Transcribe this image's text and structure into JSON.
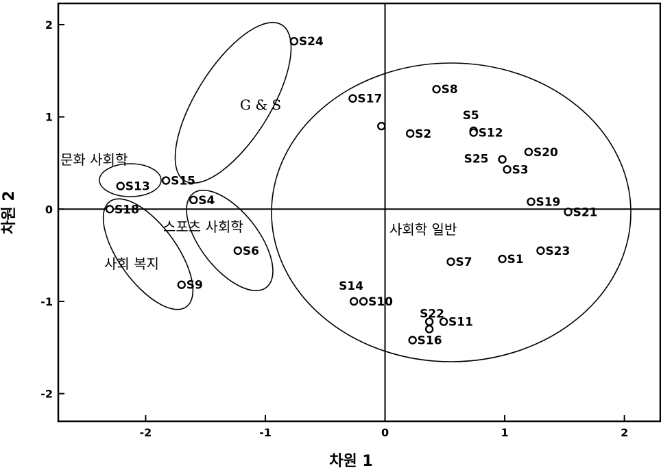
{
  "chart_data": {
    "type": "scatter",
    "xlabel": "차원 1",
    "ylabel": "차원 2",
    "xlim": [
      -2.73,
      2.3
    ],
    "ylim": [
      -2.3,
      2.23
    ],
    "x_ticks": [
      -2,
      -1,
      0,
      1,
      2
    ],
    "y_ticks": [
      -2,
      -1,
      0,
      1,
      2
    ],
    "x_tick_labels": [
      "-2",
      "-1",
      "0",
      "1",
      "2"
    ],
    "y_tick_labels": [
      "-2",
      "-1",
      "0",
      "1",
      "2"
    ],
    "reference_lines": {
      "x": 0,
      "y": 0
    },
    "grid": false,
    "points": [
      {
        "label": "S24",
        "x": -0.76,
        "y": 1.82
      },
      {
        "label": "S17",
        "x": -0.27,
        "y": 1.2
      },
      {
        "label": "S8",
        "x": 0.43,
        "y": 1.3
      },
      {
        "label": "",
        "x": -0.03,
        "y": 0.9
      },
      {
        "label": "S2",
        "x": 0.21,
        "y": 0.82
      },
      {
        "label": "S5",
        "x": 0.74,
        "y": 0.85
      },
      {
        "label": "S12",
        "x": 0.74,
        "y": 0.83
      },
      {
        "label": "S20",
        "x": 1.2,
        "y": 0.62
      },
      {
        "label": "S25",
        "x": 0.98,
        "y": 0.54
      },
      {
        "label": "S3",
        "x": 1.02,
        "y": 0.43
      },
      {
        "label": "S19",
        "x": 1.22,
        "y": 0.08
      },
      {
        "label": "S21",
        "x": 1.53,
        "y": -0.03
      },
      {
        "label": "S13",
        "x": -2.21,
        "y": 0.25
      },
      {
        "label": "S15",
        "x": -1.83,
        "y": 0.31
      },
      {
        "label": "S4",
        "x": -1.6,
        "y": 0.1
      },
      {
        "label": "S18",
        "x": -2.3,
        "y": 0.0
      },
      {
        "label": "S6",
        "x": -1.23,
        "y": -0.45
      },
      {
        "label": "S9",
        "x": -1.7,
        "y": -0.82
      },
      {
        "label": "S7",
        "x": 0.55,
        "y": -0.57
      },
      {
        "label": "S1",
        "x": 0.98,
        "y": -0.54
      },
      {
        "label": "S23",
        "x": 1.3,
        "y": -0.45
      },
      {
        "label": "S14",
        "x": -0.26,
        "y": -1.0
      },
      {
        "label": "S10",
        "x": -0.18,
        "y": -1.0
      },
      {
        "label": "S22",
        "x": 0.37,
        "y": -1.22
      },
      {
        "label": "S11",
        "x": 0.49,
        "y": -1.22
      },
      {
        "label": "",
        "x": 0.37,
        "y": -1.3
      },
      {
        "label": "S16",
        "x": 0.23,
        "y": -1.42
      }
    ],
    "groups": [
      {
        "label": "G & S"
      },
      {
        "label": "문화 사회학"
      },
      {
        "label": "사회 복지"
      },
      {
        "label": "스포츠 사회학"
      },
      {
        "label": "사회학 일반"
      }
    ]
  }
}
